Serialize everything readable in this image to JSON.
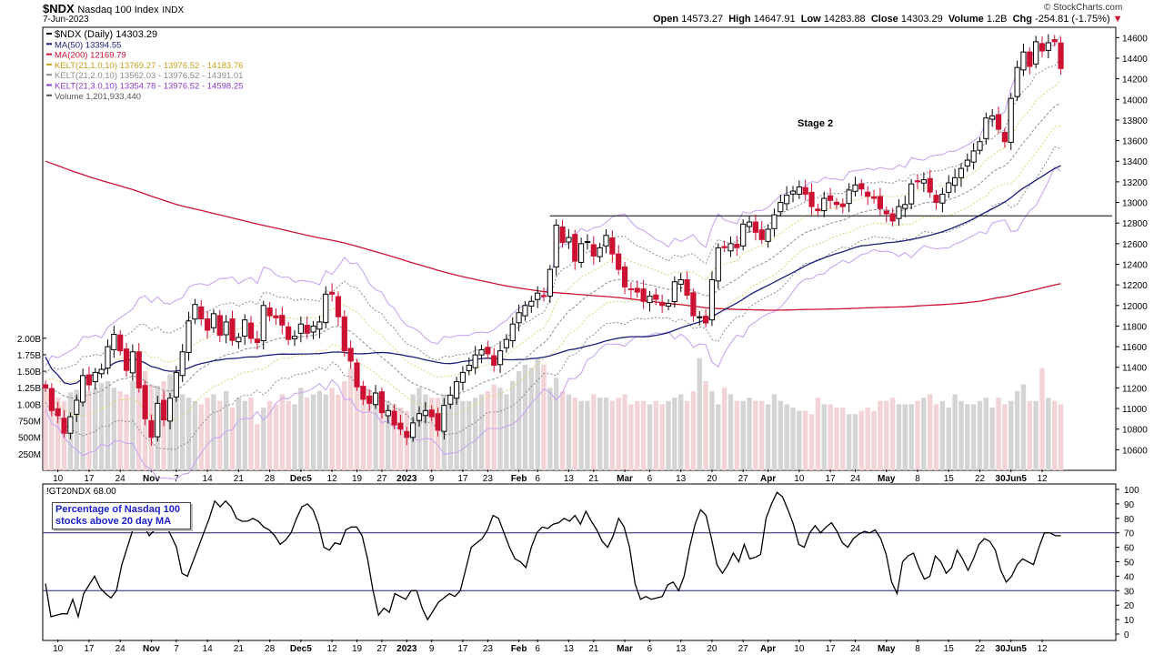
{
  "header": {
    "symbol": "$NDX",
    "name": "Nasdaq 100 Index",
    "exchange": "INDX",
    "date": "7-Jun-2023",
    "copyright": "© StockCharts.com",
    "ohlc": {
      "open_label": "Open",
      "open": "14573.27",
      "high_label": "High",
      "high": "14647.91",
      "low_label": "Low",
      "low": "14283.88",
      "close_label": "Close",
      "close": "14303.29",
      "volume_label": "Volume",
      "volume": "1.2B",
      "chg_label": "Chg",
      "chg": "-254.81 (-1.75%)"
    }
  },
  "colors": {
    "up": "#000000",
    "down": "#cc1133",
    "ma50": "#1a1f7a",
    "ma200": "#cc1133",
    "kelt1": "#e0d27a",
    "kelt2": "#8c8c8c",
    "kelt3": "#c9a6ee",
    "vol_up": "#d4d4d4",
    "vol_down": "#f2d3d6",
    "border": "#000000"
  },
  "chart_data": [
    {
      "type": "candlestick",
      "title": "$NDX (Daily) 14303.29",
      "legend": [
        {
          "label": "$NDX (Daily) 14303.29",
          "color": "#000000"
        },
        {
          "label": "MA(50) 13394.55",
          "color": "#1a1f7a"
        },
        {
          "label": "MA(200) 12169.79",
          "color": "#cc1133"
        },
        {
          "label": "KELT(21,1.0,10) 13769.27 - 13976.52 - 14183.76",
          "color": "#c8a11a"
        },
        {
          "label": "KELT(21,2.0,10) 13562.03 - 13976.52 - 14391.01",
          "color": "#8c8c8c"
        },
        {
          "label": "KELT(21,3.0,10) 13354.78 - 13976.52 - 14598.25",
          "color": "#8a3bc9"
        },
        {
          "label": "Volume 1,201,933,440",
          "color": "#555555"
        }
      ],
      "annotation": "Stage 2",
      "resistance_level": 12870,
      "ylim": [
        10400,
        14700
      ],
      "y_ticks": [
        10600,
        10800,
        11000,
        11200,
        11400,
        11600,
        11800,
        12000,
        12200,
        12400,
        12600,
        12800,
        13000,
        13200,
        13400,
        13600,
        13800,
        14000,
        14200,
        14400,
        14600
      ],
      "volume_ticks": [
        "250M",
        "500M",
        "750M",
        "1.00B",
        "1.25B",
        "1.50B",
        "1.75B",
        "2.00B"
      ],
      "volume_tick_values": [
        250,
        500,
        750,
        1000,
        1250,
        1500,
        1750,
        2000
      ],
      "volume_ylim_millions": [
        0,
        2300
      ],
      "x_ticks": [
        "10",
        "17",
        "24",
        "Nov",
        "7",
        "14",
        "21",
        "28",
        "Dec5",
        "12",
        "19",
        "27",
        "2023",
        "9",
        "17",
        "23",
        "Feb",
        "6",
        "13",
        "21",
        "Mar",
        "6",
        "13",
        "20",
        "27",
        "Apr",
        "10",
        "17",
        "24",
        "May",
        "8",
        "15",
        "22",
        "30Jun5",
        "12"
      ],
      "x_tick_bold": [
        "Nov",
        "Dec5",
        "2023",
        "Feb",
        "Mar",
        "Apr",
        "May",
        "30Jun5"
      ],
      "x_tick_bar_index": [
        2,
        7,
        12,
        17,
        21,
        26,
        31,
        36,
        41,
        46,
        50,
        54,
        58,
        62,
        67,
        71,
        76,
        79,
        84,
        88,
        93,
        97,
        102,
        107,
        112,
        116,
        121,
        126,
        130,
        135,
        140,
        145,
        150,
        155,
        160
      ],
      "closes": [
        11200,
        10980,
        10930,
        10760,
        10920,
        11080,
        11320,
        11230,
        11350,
        11380,
        11600,
        11720,
        11560,
        11370,
        11550,
        11200,
        10900,
        10720,
        11050,
        10890,
        11100,
        11350,
        11550,
        11850,
        12010,
        11870,
        11760,
        11920,
        11710,
        11840,
        11660,
        11690,
        11860,
        11680,
        11640,
        12000,
        11900,
        11880,
        11810,
        11670,
        11700,
        11820,
        11730,
        11800,
        11840,
        12110,
        12110,
        11890,
        11560,
        11460,
        11210,
        11090,
        11050,
        11150,
        10960,
        10980,
        10840,
        10800,
        10720,
        10860,
        10950,
        10980,
        10920,
        10790,
        11030,
        11130,
        11260,
        11350,
        11420,
        11520,
        11570,
        11530,
        11420,
        11560,
        11670,
        11820,
        11930,
        12000,
        12040,
        12120,
        12090,
        12350,
        12780,
        12610,
        12660,
        12430,
        12600,
        12620,
        12480,
        12560,
        12680,
        12500,
        12350,
        12180,
        12160,
        12130,
        12040,
        12090,
        12060,
        12000,
        12020,
        12230,
        12250,
        12100,
        11900,
        11890,
        11830,
        12250,
        12560,
        12560,
        12600,
        12560,
        12790,
        12810,
        12710,
        12640,
        12740,
        12880,
        13000,
        13070,
        13110,
        13150,
        13080,
        12960,
        12920,
        13040,
        13020,
        12980,
        12960,
        13120,
        13170,
        13130,
        13060,
        13040,
        12940,
        12890,
        12820,
        12960,
        12980,
        13180,
        13200,
        13220,
        13100,
        13000,
        13080,
        13190,
        13240,
        13330,
        13410,
        13500,
        13590,
        13820,
        13840,
        13710,
        13590,
        14010,
        14310,
        14460,
        14320,
        14560,
        14470,
        14550,
        14560,
        14300
      ],
      "volume_millions": [
        1230,
        1150,
        1100,
        1050,
        1180,
        1220,
        1300,
        1200,
        1250,
        1320,
        1350,
        1250,
        1200,
        1150,
        1350,
        1420,
        1500,
        1300,
        1280,
        1350,
        1450,
        1250,
        1150,
        1100,
        1050,
        1000,
        1100,
        1150,
        1050,
        1200,
        950,
        1100,
        1050,
        1100,
        700,
        950,
        1050,
        1000,
        1150,
        1050,
        1000,
        1250,
        1100,
        1150,
        1200,
        1150,
        1250,
        1150,
        1350,
        1550,
        1300,
        1250,
        1200,
        1150,
        1100,
        1050,
        1000,
        950,
        900,
        1150,
        1250,
        1150,
        1100,
        1100,
        1150,
        1050,
        1150,
        1050,
        1050,
        1100,
        1150,
        1200,
        1300,
        1250,
        1150,
        1350,
        1500,
        1600,
        1550,
        1700,
        1600,
        1250,
        1400,
        1200,
        1150,
        1100,
        1050,
        1050,
        1150,
        1100,
        1100,
        1050,
        1100,
        1150,
        1000,
        1050,
        1050,
        1000,
        1050,
        1000,
        1050,
        1100,
        1150,
        1050,
        1200,
        1700,
        1350,
        1200,
        1000,
        1250,
        1150,
        1050,
        1050,
        1100,
        1050,
        1050,
        1000,
        1150,
        1050,
        1000,
        950,
        900,
        900,
        850,
        1100,
        1000,
        1000,
        950,
        950,
        850,
        850,
        900,
        950,
        900,
        1050,
        1050,
        1100,
        1000,
        1000,
        1000,
        1050,
        1100,
        1150,
        1000,
        1050,
        950,
        1150,
        1050,
        1000,
        1000,
        1050,
        1100,
        950,
        1100,
        1000,
        1050,
        1200,
        1300,
        1050,
        1050,
        1550,
        1100,
        1050,
        1000,
        950,
        1150
      ]
    },
    {
      "type": "line",
      "title": "!GT20NDX 68.00",
      "annotation": "Percentage of Nasdaq 100 stocks above 20 day MA",
      "ylim": [
        0,
        100
      ],
      "y_ticks": [
        0,
        10,
        20,
        30,
        40,
        50,
        60,
        70,
        80,
        90,
        100
      ],
      "reference_lines": [
        30,
        70
      ],
      "values": [
        35,
        12,
        13,
        14,
        14,
        24,
        12,
        28,
        34,
        40,
        32,
        28,
        25,
        30,
        48,
        60,
        72,
        80,
        75,
        68,
        72,
        78,
        76,
        68,
        60,
        42,
        40,
        50,
        60,
        70,
        80,
        92,
        88,
        92,
        88,
        80,
        78,
        78,
        80,
        78,
        74,
        72,
        68,
        62,
        65,
        70,
        80,
        88,
        90,
        86,
        76,
        60,
        58,
        63,
        62,
        72,
        74,
        74,
        68,
        52,
        30,
        13,
        18,
        15,
        28,
        26,
        24,
        30,
        30,
        18,
        10,
        16,
        22,
        25,
        28,
        26,
        30,
        45,
        60,
        63,
        66,
        72,
        82,
        80,
        70,
        60,
        52,
        50,
        46,
        60,
        70,
        74,
        73,
        76,
        77,
        80,
        78,
        82,
        76,
        85,
        78,
        72,
        64,
        60,
        68,
        80,
        74,
        60,
        35,
        24,
        26,
        24,
        25,
        26,
        34,
        36,
        30,
        40,
        60,
        76,
        86,
        82,
        66,
        48,
        42,
        48,
        56,
        50,
        62,
        52,
        53,
        55,
        80,
        90,
        98,
        95,
        86,
        76,
        62,
        60,
        70,
        75,
        70,
        74,
        77,
        71,
        63,
        60,
        66,
        69,
        71,
        70,
        72,
        66,
        55,
        36,
        28,
        50,
        54,
        56,
        46,
        38,
        40,
        54,
        50,
        42,
        46,
        58,
        52,
        44,
        52,
        62,
        66,
        64,
        58,
        44,
        36,
        40,
        48,
        52,
        50,
        48,
        60,
        70,
        70,
        68,
        68
      ],
      "x_ticks": [
        "10",
        "17",
        "24",
        "Nov",
        "7",
        "14",
        "21",
        "28",
        "Dec5",
        "12",
        "19",
        "27",
        "2023",
        "9",
        "17",
        "23",
        "Feb",
        "6",
        "13",
        "21",
        "Mar",
        "6",
        "13",
        "20",
        "27",
        "Apr",
        "10",
        "17",
        "24",
        "May",
        "8",
        "15",
        "22",
        "30Jun5",
        "12"
      ]
    }
  ]
}
